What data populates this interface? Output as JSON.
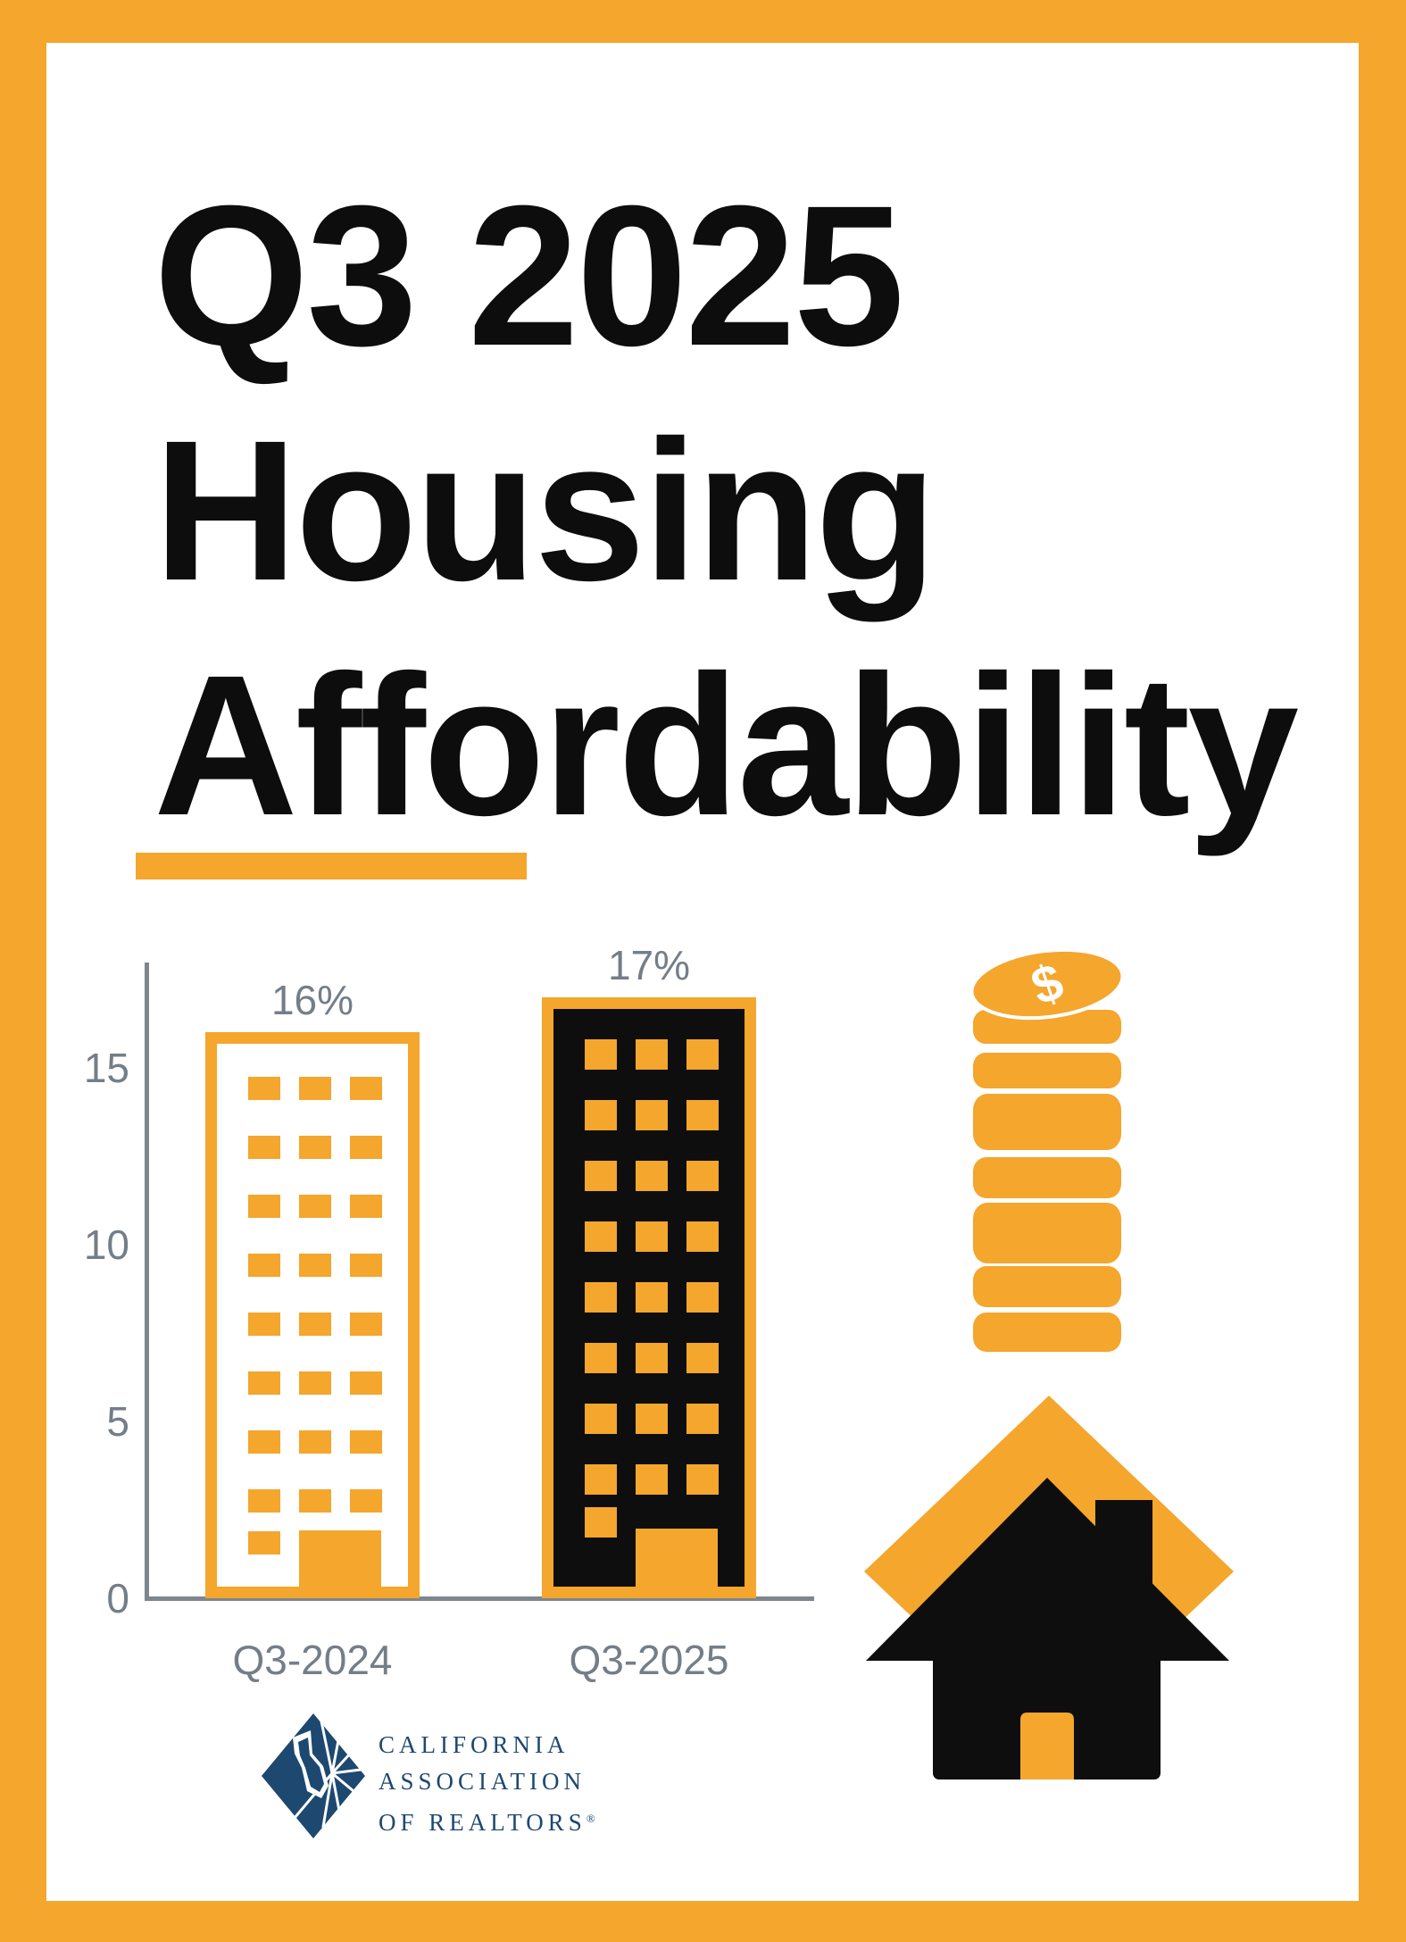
{
  "title": {
    "line1": "Q3 2025",
    "line2": "Housing",
    "line3": "Affordability"
  },
  "chart_data": {
    "type": "bar",
    "title": "",
    "categories": [
      "Q3-2024",
      "Q3-2025"
    ],
    "values": [
      16,
      17
    ],
    "value_labels": [
      "16%",
      "17%"
    ],
    "xlabel": "",
    "ylabel": "",
    "ylim": [
      0,
      18
    ],
    "y_ticks": [
      0,
      5,
      10,
      15
    ],
    "grid": false,
    "legend": "none",
    "bar_styles": [
      "outline-building",
      "solid-black-building"
    ]
  },
  "icons": {
    "coin_symbol": "$",
    "coin_stack": "stack of gold coins",
    "house": "black house on orange diamond"
  },
  "logo": {
    "line1": "CALIFORNIA",
    "line2": "ASSOCIATION",
    "line3": "OF REALTORS",
    "registered": "®"
  },
  "colors": {
    "accent_orange": "#F4A62D",
    "black": "#0E0E0E",
    "axis_gray": "#7E868E",
    "label_gray": "#747E88",
    "logo_navy": "#1D4870",
    "background": "#FFFFFF"
  }
}
